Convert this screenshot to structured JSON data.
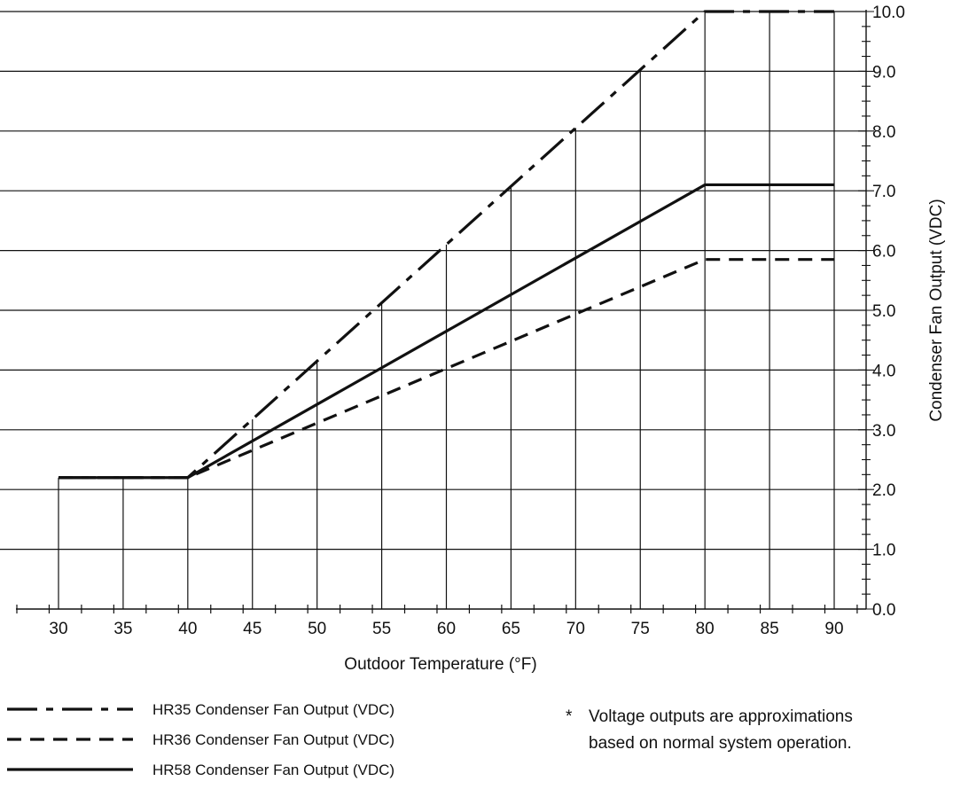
{
  "colors": {
    "line": "#111111",
    "grid": "#111111",
    "background": "#ffffff"
  },
  "chart_data": {
    "type": "line",
    "title": "",
    "xlabel": "Outdoor Temperature (°F)",
    "ylabel": "Condenser Fan Output (VDC)",
    "xlim": [
      30,
      90
    ],
    "ylim": [
      0,
      10
    ],
    "x_ticks": [
      "30",
      "35",
      "40",
      "45",
      "50",
      "55",
      "60",
      "65",
      "70",
      "75",
      "80",
      "85",
      "90"
    ],
    "y_ticks": [
      "0.0",
      "1.0",
      "2.0",
      "3.0",
      "4.0",
      "5.0",
      "6.0",
      "7.0",
      "8.0",
      "9.0",
      "10.0"
    ],
    "y_axis_side": "right",
    "grid": true,
    "legend_position": "bottom-left",
    "series": [
      {
        "name": "HR35 Condenser Fan Output (VDC)",
        "style": "dash-dot",
        "x": [
          30,
          40,
          80,
          90
        ],
        "y": [
          2.2,
          2.2,
          10.0,
          10.0
        ]
      },
      {
        "name": "HR36 Condenser Fan Output (VDC)",
        "style": "dashed",
        "x": [
          30,
          40,
          80,
          90
        ],
        "y": [
          2.2,
          2.2,
          5.85,
          5.85
        ]
      },
      {
        "name": "HR58 Condenser Fan Output (VDC)",
        "style": "solid",
        "x": [
          30,
          40,
          80,
          90
        ],
        "y": [
          2.2,
          2.2,
          7.1,
          7.1
        ]
      }
    ]
  },
  "note": {
    "marker": "*",
    "lines": [
      "Voltage outputs are approximations",
      "based on normal system operation."
    ]
  }
}
